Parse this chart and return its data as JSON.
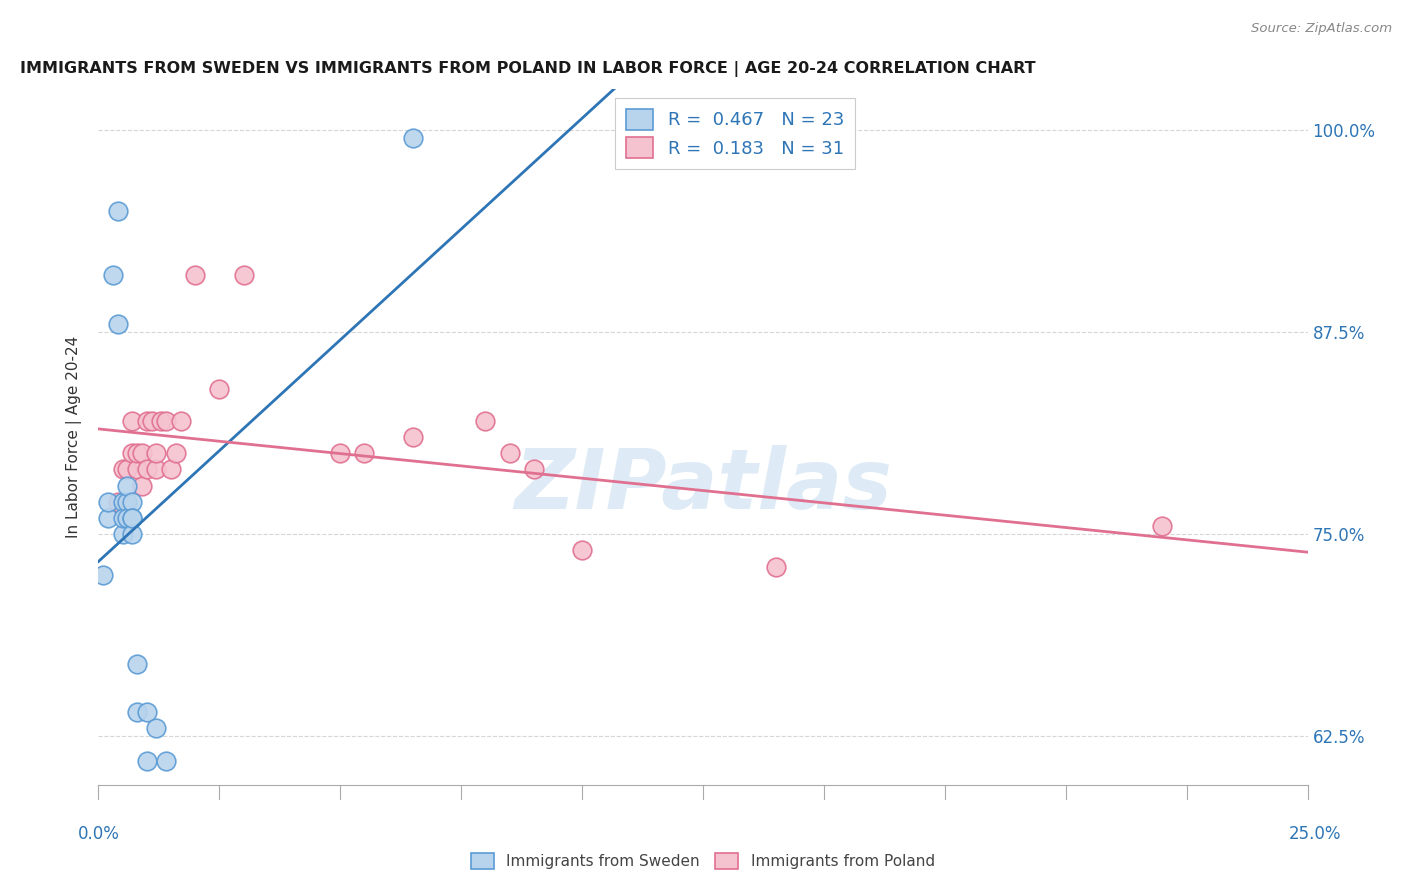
{
  "title": "IMMIGRANTS FROM SWEDEN VS IMMIGRANTS FROM POLAND IN LABOR FORCE | AGE 20-24 CORRELATION CHART",
  "source": "Source: ZipAtlas.com",
  "ylabel": "In Labor Force | Age 20-24",
  "ytick_labels": [
    "62.5%",
    "75.0%",
    "87.5%",
    "100.0%"
  ],
  "ytick_values": [
    0.625,
    0.75,
    0.875,
    1.0
  ],
  "xlim": [
    0.0,
    0.25
  ],
  "ylim": [
    0.595,
    1.025
  ],
  "sweden_color": "#b8d4ec",
  "sweden_edge_color": "#5b9bd5",
  "poland_color": "#f5c2d0",
  "poland_edge_color": "#e07090",
  "sweden_line_color": "#2e75b6",
  "poland_line_color": "#e07090",
  "sweden_R": 0.467,
  "sweden_N": 23,
  "poland_R": 0.183,
  "poland_N": 31,
  "sweden_x": [
    0.001,
    0.002,
    0.002,
    0.003,
    0.004,
    0.004,
    0.005,
    0.005,
    0.005,
    0.006,
    0.006,
    0.006,
    0.007,
    0.007,
    0.007,
    0.007,
    0.008,
    0.008,
    0.01,
    0.01,
    0.012,
    0.014,
    0.065
  ],
  "sweden_y": [
    0.725,
    0.76,
    0.77,
    0.91,
    0.88,
    0.95,
    0.77,
    0.75,
    0.76,
    0.77,
    0.78,
    0.76,
    0.77,
    0.76,
    0.75,
    0.76,
    0.67,
    0.64,
    0.64,
    0.61,
    0.63,
    0.61,
    0.995
  ],
  "poland_x": [
    0.004,
    0.005,
    0.006,
    0.007,
    0.007,
    0.008,
    0.008,
    0.009,
    0.009,
    0.01,
    0.01,
    0.011,
    0.012,
    0.012,
    0.013,
    0.014,
    0.015,
    0.016,
    0.017,
    0.02,
    0.025,
    0.03,
    0.05,
    0.055,
    0.065,
    0.08,
    0.085,
    0.09,
    0.1,
    0.14,
    0.22
  ],
  "poland_y": [
    0.77,
    0.79,
    0.79,
    0.8,
    0.82,
    0.79,
    0.8,
    0.78,
    0.8,
    0.79,
    0.82,
    0.82,
    0.79,
    0.8,
    0.82,
    0.82,
    0.79,
    0.8,
    0.82,
    0.91,
    0.84,
    0.91,
    0.8,
    0.8,
    0.81,
    0.82,
    0.8,
    0.79,
    0.74,
    0.73,
    0.755
  ],
  "watermark_text": "ZIPatlas",
  "watermark_color": "#c8dff0",
  "background_color": "#ffffff",
  "grid_color": "#cccccc",
  "grid_style": "--"
}
